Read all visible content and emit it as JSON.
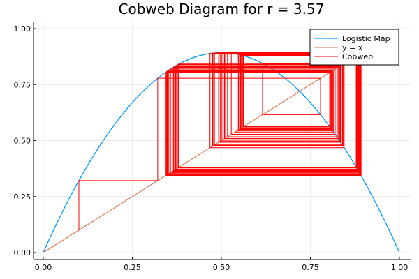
{
  "chart_data": {
    "type": "line",
    "title": "Cobweb Diagram for r = 3.57",
    "r": 3.57,
    "x0": 0.1,
    "xlabel": "",
    "ylabel": "",
    "xlim": [
      0,
      1
    ],
    "ylim": [
      0,
      1
    ],
    "xticks": [
      "0.00",
      "0.25",
      "0.50",
      "0.75",
      "1.00"
    ],
    "yticks": [
      "0.00",
      "0.25",
      "0.50",
      "0.75",
      "1.00"
    ],
    "grid": true,
    "legend_position": "top-right",
    "series": [
      {
        "name": "Logistic Map",
        "kind": "function",
        "color": "#009af9"
      },
      {
        "name": "y = x",
        "kind": "identity",
        "color": "#e26f46"
      },
      {
        "name": "Cobweb",
        "kind": "cobweb",
        "color": "#ff0000"
      }
    ]
  }
}
